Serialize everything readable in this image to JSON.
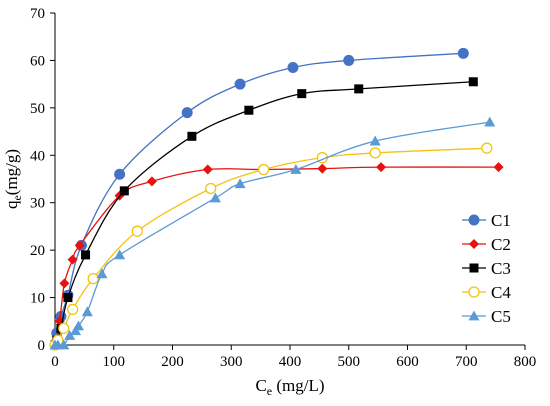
{
  "chart_data": {
    "type": "scatter",
    "title": "",
    "xlabel": "C",
    "xlabel_sub": "e",
    "xlabel_unit": " (mg/L)",
    "ylabel": "q",
    "ylabel_sub": "e",
    "ylabel_unit": "(mg/g)",
    "xlim": [
      0,
      800
    ],
    "ylim": [
      0,
      70
    ],
    "xticks": [
      0,
      100,
      200,
      300,
      400,
      500,
      600,
      700,
      800
    ],
    "yticks": [
      0,
      10,
      20,
      30,
      40,
      50,
      60,
      70
    ],
    "grid": false,
    "legend_position": "right",
    "series": [
      {
        "name": "C1",
        "color": "#4472C4",
        "marker": "circle",
        "x": [
          0,
          3,
          10,
          22,
          45,
          110,
          225,
          315,
          405,
          500,
          695
        ],
        "y": [
          0,
          2.5,
          6,
          10.5,
          21,
          36,
          49,
          55,
          58.5,
          60,
          61.5
        ]
      },
      {
        "name": "C2",
        "color": "#E8110F",
        "marker": "diamond",
        "x": [
          0,
          2,
          8,
          16,
          30,
          42,
          110,
          165,
          260,
          355,
          455,
          555,
          755
        ],
        "y": [
          0,
          1,
          5,
          13,
          18,
          21,
          31.5,
          34.5,
          37,
          37,
          37.2,
          37.5,
          37.5
        ]
      },
      {
        "name": "C3",
        "color": "#000000",
        "marker": "square",
        "x": [
          0,
          3,
          10,
          22,
          52,
          118,
          233,
          330,
          420,
          517,
          712
        ],
        "y": [
          0,
          1,
          3.5,
          10,
          19,
          32.5,
          44,
          49.5,
          53,
          54,
          55.5
        ]
      },
      {
        "name": "C4",
        "color": "#F2C40E",
        "marker": "circle-open",
        "x": [
          0,
          5,
          15,
          30,
          65,
          140,
          265,
          355,
          455,
          545,
          735
        ],
        "y": [
          0,
          1,
          3.5,
          7.5,
          14,
          24,
          33,
          37,
          39.5,
          40.5,
          41.5
        ]
      },
      {
        "name": "C5",
        "color": "#5B9BD5",
        "marker": "triangle",
        "x": [
          0,
          5,
          15,
          25,
          35,
          40,
          55,
          80,
          110,
          273,
          315,
          410,
          545,
          740
        ],
        "y": [
          0,
          0,
          0,
          2,
          3,
          4,
          7,
          15,
          19,
          31,
          34,
          37,
          43,
          47
        ]
      }
    ]
  }
}
